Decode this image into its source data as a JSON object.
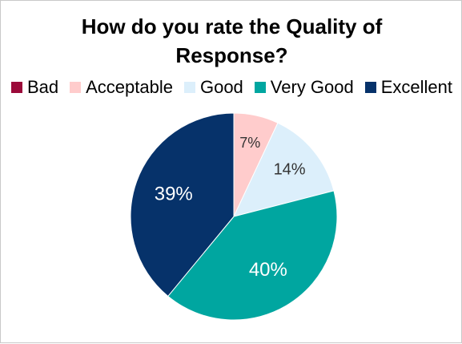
{
  "chart_data": {
    "type": "pie",
    "title": "How do you rate the Quality of Response?",
    "title_lines": [
      "How do you rate the Quality of",
      "Response?"
    ],
    "legend_position": "top",
    "categories": [
      "Bad",
      "Acceptable",
      "Good",
      "Very Good",
      "Excellent"
    ],
    "values": [
      0,
      7,
      14,
      40,
      39
    ],
    "data_labels": [
      "",
      "7%",
      "14%",
      "40%",
      "39%"
    ],
    "colors": [
      "#9b0a3a",
      "#ffcccc",
      "#dceffb",
      "#00a6a0",
      "#06326a"
    ],
    "label_colors": [
      "#ffffff",
      "#333333",
      "#333333",
      "#ffffff",
      "#ffffff"
    ]
  }
}
